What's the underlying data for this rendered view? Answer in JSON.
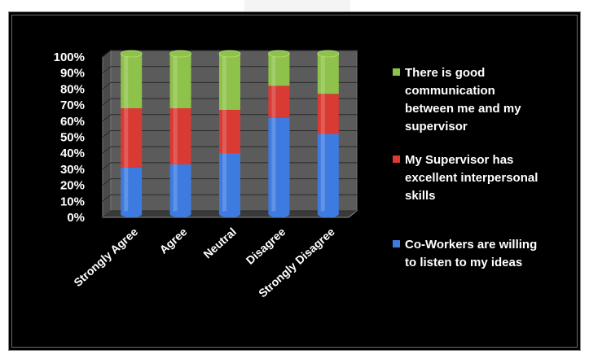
{
  "chart_data": {
    "type": "bar",
    "stacked": true,
    "percent": true,
    "categories": [
      "Strongly Agree",
      "Agree",
      "Neutral",
      "Disagree",
      "Strongly Disagree"
    ],
    "series": [
      {
        "name": "Co-Workers are willing to listen to my ideas",
        "values": [
          29,
          31,
          38,
          60,
          50
        ],
        "color": "#3d7be0"
      },
      {
        "name": "My Supervisor has excellent interpersonal skills",
        "values": [
          37,
          35,
          27,
          20,
          25
        ],
        "color": "#d93a33"
      },
      {
        "name": "There is good communication between me and my supervisor",
        "values": [
          34,
          34,
          35,
          20,
          25
        ],
        "color": "#8ec24a"
      }
    ],
    "ylim": [
      0,
      100
    ],
    "yticks": [
      "0%",
      "10%",
      "20%",
      "30%",
      "40%",
      "50%",
      "60%",
      "70%",
      "80%",
      "90%",
      "100%"
    ],
    "legend": [
      {
        "lines": [
          "There is good",
          "communication",
          "between me and my",
          "supervisor"
        ],
        "color": "#8ec24a"
      },
      {
        "lines": [
          "My Supervisor has",
          "excellent interpersonal",
          "skills"
        ],
        "color": "#d93a33"
      },
      {
        "lines": [
          "Co-Workers are willing",
          "to listen to my ideas"
        ],
        "color": "#3d7be0"
      }
    ],
    "legend_position": "right",
    "background": "#000000",
    "wall_color": "#5b5b5b"
  }
}
